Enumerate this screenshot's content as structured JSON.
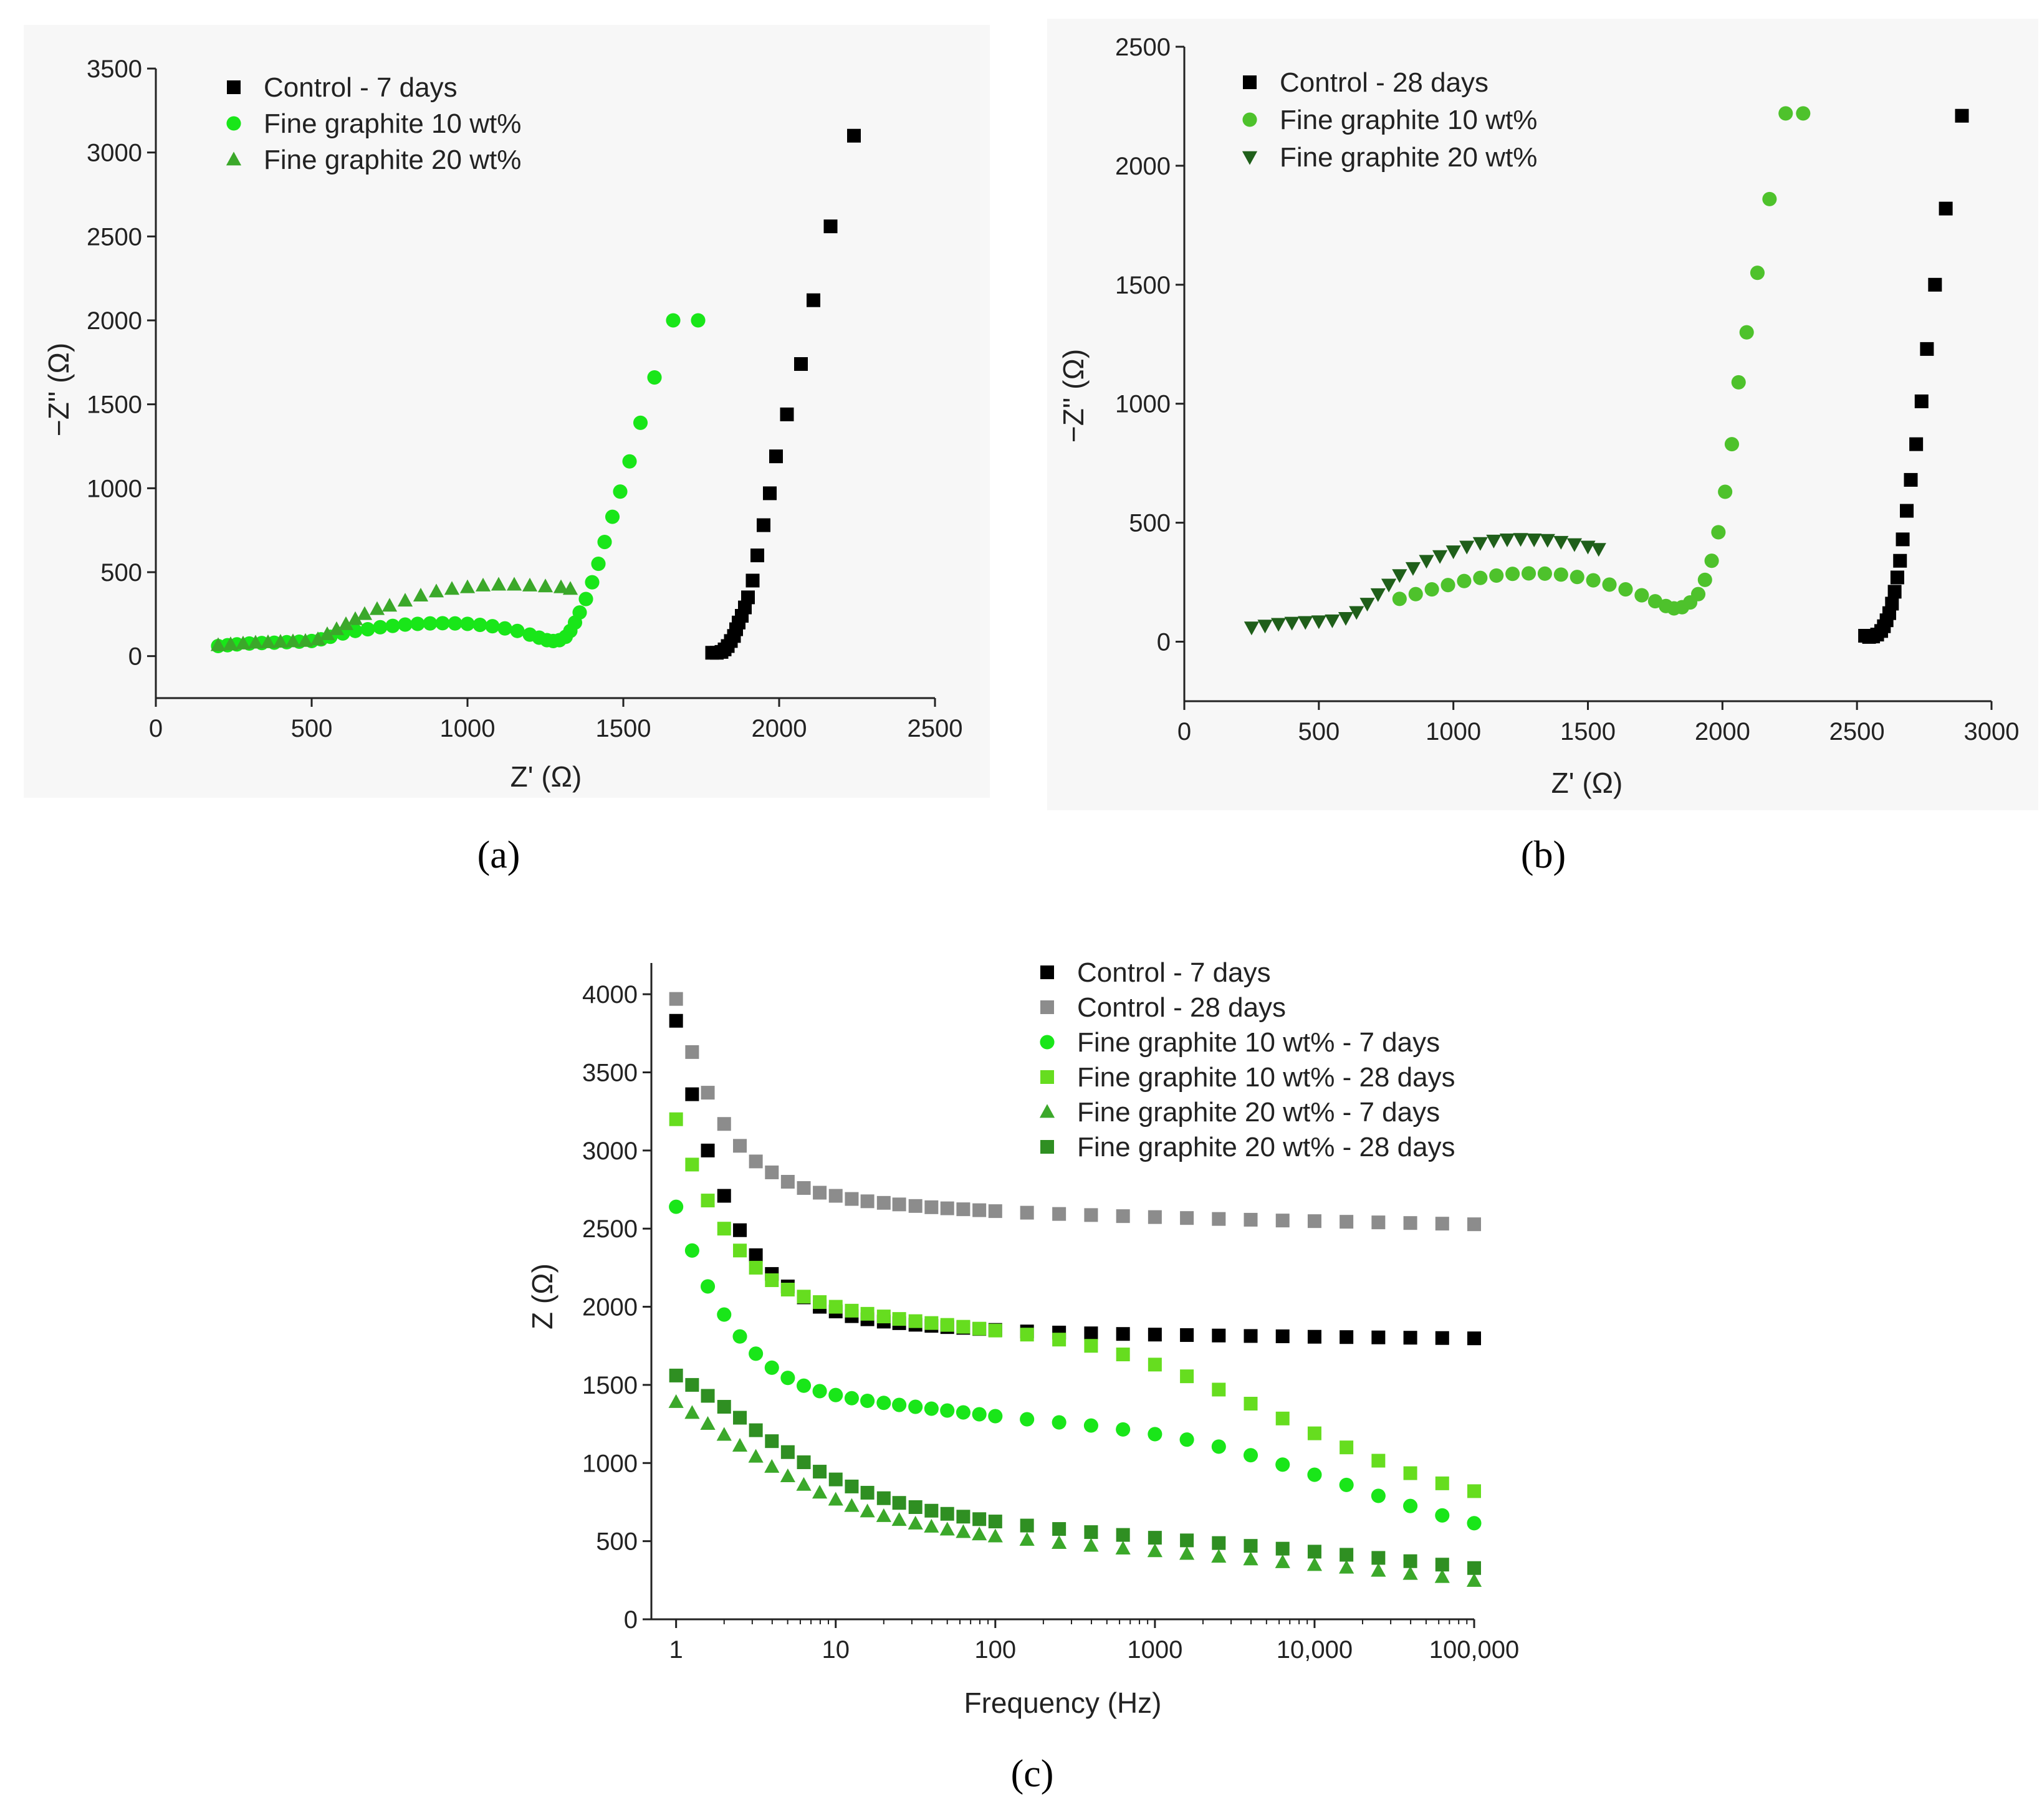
{
  "colors": {
    "control": "#000000",
    "control_28": "#8c8c8c",
    "fg10_7": "#19e619",
    "fg10_28": "#66dd1f",
    "fg20_7": "#3ba82a",
    "fg20_28_a": "#2f8f22",
    "fg20_28_b": "#1f5f1a",
    "fg10_b": "#4ec22c",
    "panel_bg": "#f7f7f7"
  },
  "chart_data": [
    {
      "id": "a",
      "caption": "(a)",
      "type": "scatter",
      "xlabel": "Z' (Ω)",
      "ylabel": "−Z'' (Ω)",
      "xlim": [
        0,
        2500
      ],
      "ylim": [
        -250,
        3500
      ],
      "xticks": [
        0,
        500,
        1000,
        1500,
        2000,
        2500
      ],
      "yticks": [
        0,
        500,
        1000,
        1500,
        2000,
        2500,
        3000,
        3500
      ],
      "legend_position": "top-left",
      "series": [
        {
          "name": "Control - 7 days",
          "marker": "square",
          "color": "#000000",
          "x": [
            1785,
            1800,
            1815,
            1825,
            1835,
            1845,
            1855,
            1862,
            1870,
            1880,
            1890,
            1900,
            1915,
            1930,
            1950,
            1970,
            1990,
            2025,
            2070,
            2110,
            2165,
            2240
          ],
          "y": [
            20,
            20,
            25,
            40,
            60,
            90,
            120,
            160,
            200,
            240,
            290,
            350,
            450,
            600,
            780,
            970,
            1190,
            1440,
            1740,
            2120,
            2560,
            3100
          ]
        },
        {
          "name": "Fine graphite 10 wt%",
          "marker": "circle",
          "color": "#19e619",
          "x": [
            200,
            230,
            260,
            300,
            340,
            380,
            420,
            460,
            500,
            530,
            560,
            600,
            640,
            680,
            720,
            760,
            800,
            840,
            880,
            920,
            960,
            1000,
            1040,
            1080,
            1120,
            1160,
            1200,
            1230,
            1255,
            1275,
            1295,
            1315,
            1330,
            1345,
            1360,
            1380,
            1400,
            1420,
            1440,
            1465,
            1490,
            1520,
            1555,
            1600,
            1660,
            1740
          ],
          "y": [
            60,
            65,
            70,
            75,
            78,
            80,
            83,
            86,
            90,
            100,
            115,
            135,
            150,
            160,
            172,
            180,
            188,
            192,
            195,
            196,
            195,
            192,
            186,
            178,
            165,
            150,
            128,
            110,
            95,
            90,
            95,
            115,
            150,
            200,
            260,
            340,
            440,
            550,
            680,
            830,
            980,
            1160,
            1390,
            1660,
            2000,
            2000
          ]
        },
        {
          "name": "Fine graphite 20 wt%",
          "marker": "triangle",
          "color": "#3ba82a",
          "x": [
            200,
            240,
            280,
            320,
            360,
            400,
            440,
            480,
            520,
            550,
            580,
            610,
            640,
            670,
            710,
            750,
            800,
            850,
            900,
            950,
            1000,
            1050,
            1100,
            1150,
            1200,
            1250,
            1300,
            1330
          ],
          "y": [
            65,
            70,
            75,
            80,
            82,
            85,
            88,
            90,
            100,
            130,
            160,
            190,
            220,
            250,
            280,
            300,
            330,
            360,
            385,
            400,
            410,
            420,
            425,
            425,
            420,
            415,
            410,
            400
          ]
        }
      ]
    },
    {
      "id": "b",
      "caption": "(b)",
      "type": "scatter",
      "xlabel": "Z' (Ω)",
      "ylabel": "−Z'' (Ω)",
      "xlim": [
        0,
        3000
      ],
      "ylim": [
        -250,
        2500
      ],
      "xticks": [
        0,
        500,
        1000,
        1500,
        2000,
        2500,
        3000
      ],
      "yticks": [
        0,
        500,
        1000,
        1500,
        2000,
        2500
      ],
      "legend_position": "top-left",
      "series": [
        {
          "name": "Control - 28 days",
          "marker": "square",
          "color": "#000000",
          "x": [
            2530,
            2545,
            2560,
            2575,
            2590,
            2600,
            2610,
            2620,
            2630,
            2640,
            2650,
            2660,
            2670,
            2685,
            2700,
            2720,
            2740,
            2760,
            2790,
            2830,
            2890
          ],
          "y": [
            25,
            20,
            22,
            30,
            45,
            65,
            90,
            120,
            160,
            210,
            270,
            340,
            430,
            550,
            680,
            830,
            1010,
            1230,
            1500,
            1820,
            2210
          ]
        },
        {
          "name": "Fine graphite 10 wt%",
          "marker": "circle",
          "color": "#4ec22c",
          "x": [
            800,
            860,
            920,
            980,
            1040,
            1100,
            1160,
            1220,
            1280,
            1340,
            1400,
            1460,
            1520,
            1580,
            1640,
            1700,
            1750,
            1790,
            1820,
            1850,
            1880,
            1910,
            1935,
            1960,
            1985,
            2010,
            2035,
            2060,
            2090,
            2130,
            2175,
            2235,
            2300
          ],
          "y": [
            180,
            200,
            220,
            238,
            255,
            268,
            278,
            285,
            287,
            286,
            282,
            272,
            258,
            240,
            220,
            195,
            170,
            150,
            140,
            145,
            165,
            200,
            260,
            340,
            460,
            630,
            830,
            1090,
            1300,
            1550,
            1860,
            2220,
            2220
          ]
        },
        {
          "name": "Fine graphite 20 wt%",
          "marker": "triangle-down",
          "color": "#1f5f1a",
          "x": [
            250,
            300,
            350,
            400,
            450,
            500,
            550,
            600,
            640,
            680,
            720,
            760,
            800,
            850,
            900,
            950,
            1000,
            1050,
            1100,
            1150,
            1200,
            1250,
            1300,
            1350,
            1400,
            1450,
            1500,
            1540
          ],
          "y": [
            60,
            68,
            75,
            80,
            83,
            86,
            90,
            100,
            125,
            160,
            200,
            240,
            280,
            310,
            340,
            360,
            380,
            400,
            415,
            425,
            430,
            432,
            430,
            428,
            420,
            410,
            400,
            390
          ]
        }
      ]
    },
    {
      "id": "c",
      "caption": "(c)",
      "type": "scatter",
      "xlabel": "Frequency (Hz)",
      "ylabel": "Z (Ω)",
      "xscale": "log",
      "xlim": [
        0.7,
        100000
      ],
      "ylim": [
        0,
        4200
      ],
      "xticks": [
        1,
        10,
        100,
        1000,
        10000,
        100000
      ],
      "xtick_labels": [
        "1",
        "10",
        "100",
        "1000",
        "10,000",
        "100,000"
      ],
      "yticks": [
        0,
        500,
        1000,
        1500,
        2000,
        2500,
        3000,
        3500,
        4000
      ],
      "legend_position": "top-right",
      "series": [
        {
          "name": "Control - 7 days",
          "marker": "square",
          "color": "#000000",
          "x": [
            1,
            1.26,
            1.58,
            2,
            2.51,
            3.16,
            3.98,
            5.01,
            6.31,
            7.94,
            10,
            12.6,
            15.8,
            20,
            25,
            31.6,
            39.8,
            50,
            63,
            79.4,
            100,
            158,
            251,
            398,
            631,
            1000,
            1585,
            2512,
            3981,
            6310,
            10000,
            15849,
            25119,
            39811,
            63096,
            100000
          ],
          "y": [
            3830,
            3360,
            3000,
            2710,
            2490,
            2330,
            2210,
            2130,
            2060,
            2000,
            1970,
            1940,
            1920,
            1905,
            1895,
            1885,
            1878,
            1870,
            1865,
            1858,
            1852,
            1842,
            1835,
            1830,
            1826,
            1822,
            1819,
            1816,
            1813,
            1811,
            1808,
            1806,
            1804,
            1802,
            1800,
            1798
          ]
        },
        {
          "name": "Control - 28 days",
          "marker": "square",
          "color": "#8c8c8c",
          "x": [
            1,
            1.26,
            1.58,
            2,
            2.51,
            3.16,
            3.98,
            5.01,
            6.31,
            7.94,
            10,
            12.6,
            15.8,
            20,
            25,
            31.6,
            39.8,
            50,
            63,
            79.4,
            100,
            158,
            251,
            398,
            631,
            1000,
            1585,
            2512,
            3981,
            6310,
            10000,
            15849,
            25119,
            39811,
            63096,
            100000
          ],
          "y": [
            3970,
            3630,
            3370,
            3170,
            3030,
            2930,
            2860,
            2800,
            2760,
            2730,
            2710,
            2690,
            2675,
            2665,
            2655,
            2645,
            2637,
            2630,
            2624,
            2618,
            2612,
            2602,
            2594,
            2587,
            2580,
            2574,
            2568,
            2562,
            2557,
            2552,
            2548,
            2544,
            2540,
            2536,
            2532,
            2528
          ]
        },
        {
          "name": "Fine graphite 10 wt% - 7 days",
          "marker": "circle",
          "color": "#19e619",
          "x": [
            1,
            1.26,
            1.58,
            2,
            2.51,
            3.16,
            3.98,
            5.01,
            6.31,
            7.94,
            10,
            12.6,
            15.8,
            20,
            25,
            31.6,
            39.8,
            50,
            63,
            79.4,
            100,
            158,
            251,
            398,
            631,
            1000,
            1585,
            2512,
            3981,
            6310,
            10000,
            15849,
            25119,
            39811,
            63096,
            100000
          ],
          "y": [
            2640,
            2360,
            2130,
            1950,
            1810,
            1700,
            1610,
            1545,
            1495,
            1460,
            1435,
            1415,
            1398,
            1385,
            1372,
            1360,
            1348,
            1336,
            1324,
            1312,
            1300,
            1280,
            1260,
            1240,
            1215,
            1185,
            1150,
            1105,
            1050,
            990,
            925,
            860,
            790,
            725,
            665,
            615
          ]
        },
        {
          "name": "Fine graphite 10 wt% - 28 days",
          "marker": "square",
          "color": "#66dd1f",
          "x": [
            1,
            1.26,
            1.58,
            2,
            2.51,
            3.16,
            3.98,
            5.01,
            6.31,
            7.94,
            10,
            12.6,
            15.8,
            20,
            25,
            31.6,
            39.8,
            50,
            63,
            79.4,
            100,
            158,
            251,
            398,
            631,
            1000,
            1585,
            2512,
            3981,
            6310,
            10000,
            15849,
            25119,
            39811,
            63096,
            100000
          ],
          "y": [
            3200,
            2910,
            2680,
            2500,
            2360,
            2250,
            2170,
            2110,
            2065,
            2030,
            2000,
            1975,
            1955,
            1938,
            1922,
            1908,
            1896,
            1884,
            1872,
            1860,
            1848,
            1822,
            1790,
            1750,
            1695,
            1630,
            1555,
            1470,
            1380,
            1285,
            1190,
            1100,
            1015,
            935,
            870,
            820
          ]
        },
        {
          "name": "Fine graphite 20 wt% - 7 days",
          "marker": "triangle",
          "color": "#3ba82a",
          "x": [
            1,
            1.26,
            1.58,
            2,
            2.51,
            3.16,
            3.98,
            5.01,
            6.31,
            7.94,
            10,
            12.6,
            15.8,
            20,
            25,
            31.6,
            39.8,
            50,
            63,
            79.4,
            100,
            158,
            251,
            398,
            631,
            1000,
            1585,
            2512,
            3981,
            6310,
            10000,
            15849,
            25119,
            39811,
            63096,
            100000
          ],
          "y": [
            1390,
            1320,
            1250,
            1180,
            1110,
            1040,
            975,
            915,
            860,
            810,
            765,
            725,
            690,
            660,
            635,
            612,
            592,
            574,
            558,
            543,
            530,
            508,
            488,
            470,
            452,
            435,
            418,
            400,
            383,
            365,
            347,
            330,
            310,
            290,
            270,
            245
          ]
        },
        {
          "name": "Fine graphite 20 wt% - 28 days",
          "marker": "square",
          "color": "#2f8f22",
          "x": [
            1,
            1.26,
            1.58,
            2,
            2.51,
            3.16,
            3.98,
            5.01,
            6.31,
            7.94,
            10,
            12.6,
            15.8,
            20,
            25,
            31.6,
            39.8,
            50,
            63,
            79.4,
            100,
            158,
            251,
            398,
            631,
            1000,
            1585,
            2512,
            3981,
            6310,
            10000,
            15849,
            25119,
            39811,
            63096,
            100000
          ],
          "y": [
            1560,
            1500,
            1430,
            1360,
            1290,
            1210,
            1140,
            1070,
            1005,
            945,
            895,
            850,
            810,
            775,
            745,
            718,
            695,
            675,
            657,
            641,
            626,
            600,
            578,
            558,
            540,
            522,
            505,
            488,
            470,
            452,
            433,
            413,
            393,
            372,
            350,
            328
          ]
        }
      ]
    }
  ]
}
